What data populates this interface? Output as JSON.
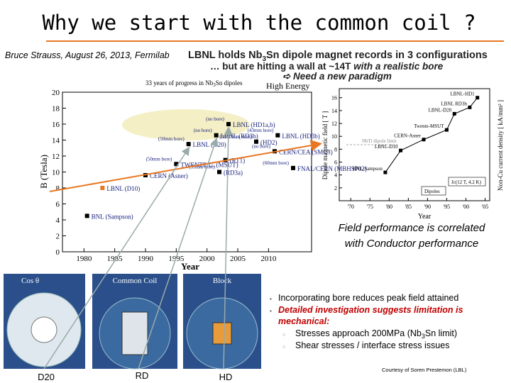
{
  "title": "Why we start with the common coil ?",
  "author": "Bruce Strauss, August 26, 2013, Fermilab",
  "headline": {
    "line1": [
      "LBNL holds Nb",
      "3",
      "Sn dipole magnet records in 3 configurations"
    ],
    "line2": [
      "… but are hitting a wall at ~14T ",
      "with a realistic bore"
    ],
    "line3": "➪ Need a new paradigm"
  },
  "left_chart": {
    "title": [
      "33 years of progress in Nb",
      "3",
      "Sn dipoles"
    ],
    "corner": "High Energy",
    "xlabel": "Year",
    "ylabel": "B (Tesla)",
    "xlim": [
      1976.5,
      2017
    ],
    "ylim": [
      0,
      20
    ],
    "xticks": [
      1980,
      1985,
      1990,
      1995,
      2000,
      2005,
      2010
    ],
    "yticks": [
      0,
      2,
      4,
      6,
      8,
      10,
      12,
      14,
      16,
      18,
      20
    ],
    "points": [
      {
        "x": 1980.5,
        "y": 4.5,
        "label": "BNL (Sampson)"
      },
      {
        "x": 1983,
        "y": 8,
        "label": "LBNL (D10)"
      },
      {
        "x": 1990,
        "y": 9.6,
        "label": "CERN (Asner)"
      },
      {
        "x": 1995,
        "y": 11,
        "label": "TWENTE U. (MSUT)",
        "note": "(50mm bore)"
      },
      {
        "x": 1997,
        "y": 13.5,
        "label": "LBNL (D20)",
        "note": "(50mm bore)"
      },
      {
        "x": 2001.5,
        "y": 14.6,
        "label": "LBNL (RD3b)",
        "note": "(no bore)"
      },
      {
        "x": 2003.5,
        "y": 16,
        "label": "LBNL (HD1a,b)",
        "note": "(no bore)"
      },
      {
        "x": 2003,
        "y": 11.5,
        "label": "(RT1)"
      },
      {
        "x": 2002,
        "y": 10,
        "label": "(RD3a)",
        "note": "(35mm bore)"
      },
      {
        "x": 2008,
        "y": 13.8,
        "label": "(HD2)",
        "note": "(36/43mm bore)"
      },
      {
        "x": 2011.5,
        "y": 14.6,
        "label": "LBNL (HD3b)",
        "note": "(43mm bore)"
      },
      {
        "x": 2011,
        "y": 12.6,
        "label": "CERN/CEA (SMC3)",
        "note": "(no bore)"
      },
      {
        "x": 2014,
        "y": 10.5,
        "label": "FNAL/CERN (MBHSP02)",
        "note": "(60mm bore)"
      }
    ]
  },
  "right_chart": {
    "ylabel": "Dipole magnetic field [ T ]",
    "y2label": "Non-Cu current density [ kA/mm² ]",
    "xlabel": "Year",
    "xlim": [
      1967,
      2006.2
    ],
    "ylim": [
      0,
      17.4
    ],
    "xticks": [
      {
        "value": 1970,
        "label": "'70"
      },
      {
        "value": 1975,
        "label": "'75"
      },
      {
        "value": 1980,
        "label": "'80"
      },
      {
        "value": 1985,
        "label": "'85"
      },
      {
        "value": 1990,
        "label": "'90"
      },
      {
        "value": 1995,
        "label": "'95"
      },
      {
        "value": 2000,
        "label": "'00"
      },
      {
        "value": 2005,
        "label": "'05"
      }
    ],
    "yticks": [
      2,
      4,
      6,
      8,
      10,
      12,
      14,
      16
    ],
    "limit_label": "NbTi dipole limit",
    "legend": [
      "Dipoles",
      "Jc(12 T, 4.2 K)"
    ],
    "points": [
      {
        "x": 1979,
        "y": 4.4,
        "label": "BNL-Sampson"
      },
      {
        "x": 1983,
        "y": 7.8,
        "label": "LBNL-D10"
      },
      {
        "x": 1989,
        "y": 9.5,
        "label": "CERN-Asner"
      },
      {
        "x": 1995,
        "y": 11,
        "label": "Twente-MSUT"
      },
      {
        "x": 1997,
        "y": 13.5,
        "label": "LBNL-D20"
      },
      {
        "x": 2001,
        "y": 14.5,
        "label": "LBNL RD3b"
      },
      {
        "x": 2003,
        "y": 16,
        "label": "LBNL-HD1"
      }
    ]
  },
  "caption": [
    "Field performance is correlated",
    "with Conductor performance"
  ],
  "panels": [
    {
      "header": "Cos θ",
      "label": "D20"
    },
    {
      "header": "Common Coil",
      "label": "RD"
    },
    {
      "header": "Block",
      "label": "HD"
    }
  ],
  "bullets": [
    {
      "text": [
        "Incorporating bore reduces peak field attained"
      ]
    },
    {
      "text": [
        "Detailed investigation suggests limitation is",
        "mechanical:"
      ],
      "sub": [
        [
          "Stresses approach 200MPa (Nb",
          "3",
          "Sn limit)"
        ],
        [
          "Shear stresses / interface stress issues"
        ]
      ]
    }
  ],
  "credit": "Courtesy of Soren Prestemon (LBL)"
}
